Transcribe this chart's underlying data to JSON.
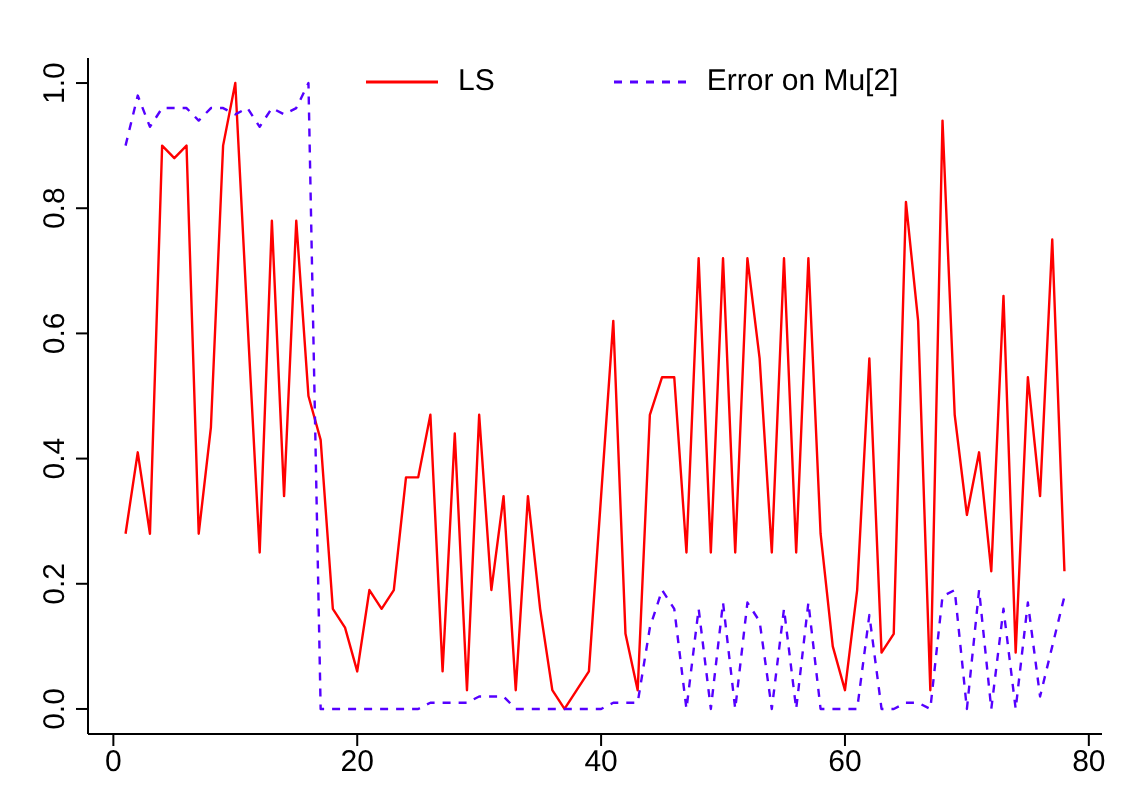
{
  "chart_data": {
    "type": "line",
    "x": [
      1,
      2,
      3,
      4,
      5,
      6,
      7,
      8,
      9,
      10,
      11,
      12,
      13,
      14,
      15,
      16,
      17,
      18,
      19,
      20,
      21,
      22,
      23,
      24,
      25,
      26,
      27,
      28,
      29,
      30,
      31,
      32,
      33,
      34,
      35,
      36,
      37,
      38,
      39,
      40,
      41,
      42,
      43,
      44,
      45,
      46,
      47,
      48,
      49,
      50,
      51,
      52,
      53,
      54,
      55,
      56,
      57,
      58,
      59,
      60,
      61,
      62,
      63,
      64,
      65,
      66,
      67,
      68,
      69,
      70,
      71,
      72,
      73,
      74,
      75,
      76,
      77,
      78
    ],
    "series": [
      {
        "name": "LS",
        "color": "#ff0000",
        "line_style": "solid",
        "values": [
          0.28,
          0.41,
          0.28,
          0.9,
          0.88,
          0.9,
          0.28,
          0.45,
          0.9,
          1.0,
          0.62,
          0.25,
          0.78,
          0.34,
          0.78,
          0.5,
          0.43,
          0.16,
          0.13,
          0.06,
          0.19,
          0.16,
          0.19,
          0.37,
          0.37,
          0.47,
          0.06,
          0.44,
          0.03,
          0.47,
          0.19,
          0.34,
          0.03,
          0.34,
          0.16,
          0.03,
          0.0,
          0.03,
          0.06,
          0.34,
          0.62,
          0.12,
          0.03,
          0.47,
          0.53,
          0.53,
          0.25,
          0.72,
          0.25,
          0.72,
          0.25,
          0.72,
          0.56,
          0.25,
          0.72,
          0.25,
          0.72,
          0.28,
          0.1,
          0.03,
          0.19,
          0.56,
          0.09,
          0.12,
          0.81,
          0.62,
          0.03,
          0.94,
          0.47,
          0.31,
          0.41,
          0.22,
          0.66,
          0.09,
          0.53,
          0.34,
          0.75,
          0.22
        ]
      },
      {
        "name": "Error on Mu[2]",
        "color": "#5500ff",
        "line_style": "dashed",
        "values": [
          0.9,
          0.98,
          0.93,
          0.96,
          0.96,
          0.96,
          0.94,
          0.96,
          0.96,
          0.95,
          0.96,
          0.93,
          0.96,
          0.95,
          0.96,
          1.0,
          0.0,
          0.0,
          0.0,
          0.0,
          0.0,
          0.0,
          0.0,
          0.0,
          0.0,
          0.01,
          0.01,
          0.01,
          0.01,
          0.02,
          0.02,
          0.02,
          0.0,
          0.0,
          0.0,
          0.0,
          0.0,
          0.0,
          0.0,
          0.0,
          0.01,
          0.01,
          0.01,
          0.13,
          0.19,
          0.16,
          0.0,
          0.16,
          0.0,
          0.17,
          0.0,
          0.17,
          0.14,
          0.0,
          0.16,
          0.0,
          0.17,
          0.0,
          0.0,
          0.0,
          0.0,
          0.15,
          0.0,
          0.0,
          0.01,
          0.01,
          0.0,
          0.18,
          0.19,
          0.0,
          0.19,
          0.0,
          0.16,
          0.0,
          0.17,
          0.02,
          0.1,
          0.18
        ]
      }
    ],
    "xlim": [
      -2.08,
      81.08
    ],
    "ylim": [
      -0.04,
      1.04
    ],
    "xticks": [
      0,
      20,
      40,
      60,
      80
    ],
    "yticks": [
      {
        "value": 0,
        "label": "0.0"
      },
      {
        "value": 0.2,
        "label": "0.2"
      },
      {
        "value": 0.4,
        "label": "0.4"
      },
      {
        "value": 0.6,
        "label": "0.6"
      },
      {
        "value": 0.8,
        "label": "0.8"
      },
      {
        "value": 1,
        "label": "1.0"
      }
    ],
    "grid": false,
    "legend": "top",
    "marker": "none"
  }
}
